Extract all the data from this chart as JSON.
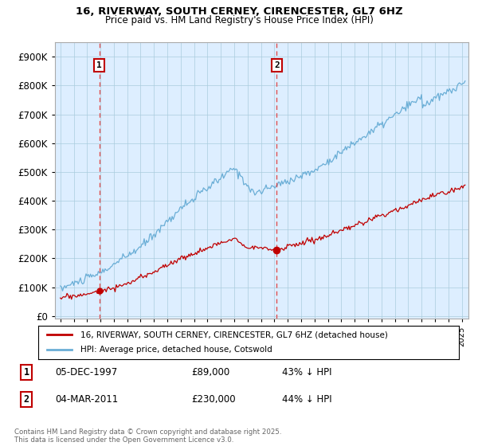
{
  "title_line1": "16, RIVERWAY, SOUTH CERNEY, CIRENCESTER, GL7 6HZ",
  "title_line2": "Price paid vs. HM Land Registry's House Price Index (HPI)",
  "legend_label1": "16, RIVERWAY, SOUTH CERNEY, CIRENCESTER, GL7 6HZ (detached house)",
  "legend_label2": "HPI: Average price, detached house, Cotswold",
  "annotation1_label": "1",
  "annotation1_date": "05-DEC-1997",
  "annotation1_price": "£89,000",
  "annotation1_hpi": "43% ↓ HPI",
  "annotation1_year": 1997.92,
  "annotation1_value_red": 89000,
  "annotation2_label": "2",
  "annotation2_date": "04-MAR-2011",
  "annotation2_price": "£230,000",
  "annotation2_hpi": "44% ↓ HPI",
  "annotation2_year": 2011.17,
  "annotation2_value_red": 230000,
  "hpi_color": "#6aaed6",
  "price_color": "#c00000",
  "dashed_color": "#e05050",
  "plot_bg_color": "#ddeeff",
  "background_color": "#ffffff",
  "grid_color": "#aaccdd",
  "ylim_max": 950000,
  "footer": "Contains HM Land Registry data © Crown copyright and database right 2025.\nThis data is licensed under the Open Government Licence v3.0."
}
